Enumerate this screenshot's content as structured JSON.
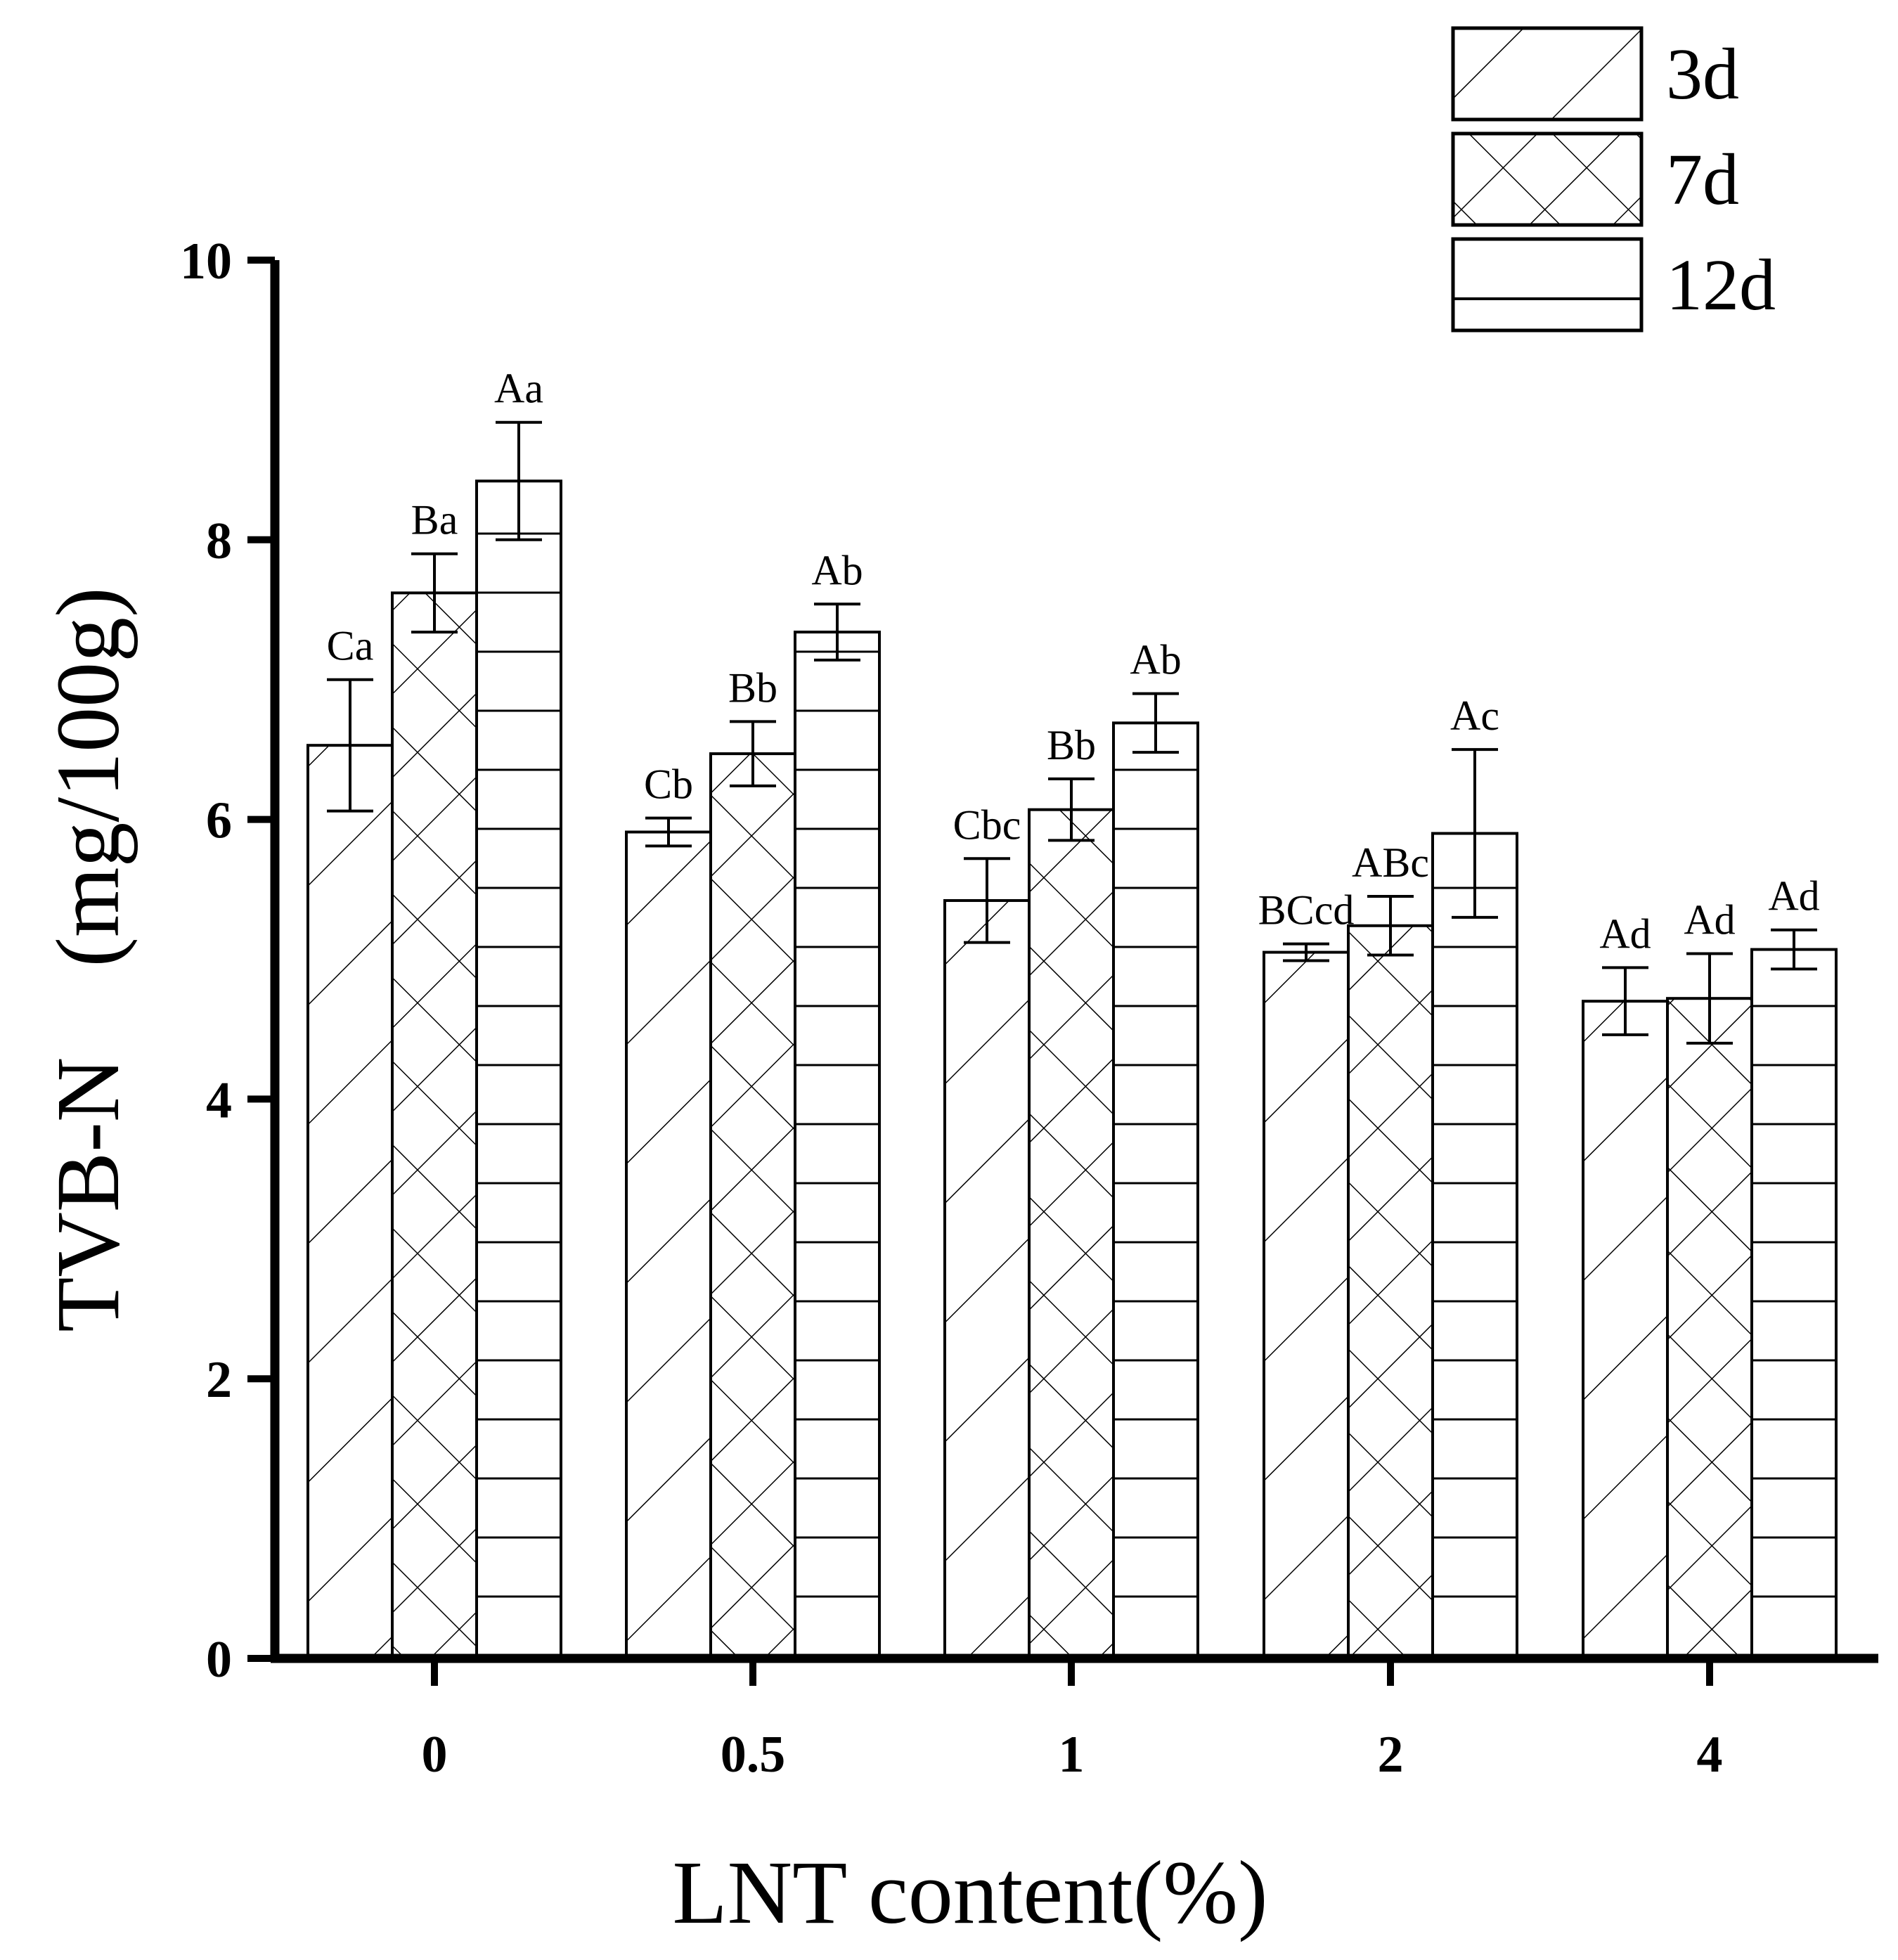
{
  "chart_data": {
    "type": "bar",
    "title": "",
    "xlabel": "LNT content(%)",
    "ylabel": "TVB-N　(mg/100g)",
    "ylim": [
      0,
      10
    ],
    "yticks": [
      "0",
      "2",
      "4",
      "6",
      "8",
      "10"
    ],
    "categories": [
      "0",
      "0.5",
      "1",
      "2",
      "4"
    ],
    "series": [
      {
        "name": "3d",
        "pattern": "diagonal",
        "values": [
          6.53,
          5.91,
          5.42,
          5.05,
          4.7
        ],
        "errors": [
          0.47,
          0.1,
          0.3,
          0.06,
          0.24
        ],
        "labels": [
          "Ca",
          "Cb",
          "Cbc",
          "BCcd",
          "Ad"
        ]
      },
      {
        "name": "7d",
        "pattern": "crosshatch",
        "values": [
          7.62,
          6.47,
          6.07,
          5.24,
          4.72
        ],
        "errors": [
          0.28,
          0.23,
          0.22,
          0.21,
          0.32
        ],
        "labels": [
          "Ba",
          "Bb",
          "Bb",
          "ABc",
          "Ad"
        ]
      },
      {
        "name": "12d",
        "pattern": "horizontal",
        "values": [
          8.42,
          7.34,
          6.69,
          5.9,
          5.07
        ],
        "errors": [
          0.42,
          0.2,
          0.21,
          0.6,
          0.14
        ],
        "labels": [
          "Aa",
          "Ab",
          "Ab",
          "Ac",
          "Ad"
        ]
      }
    ],
    "legend_position": "top-right"
  },
  "colors": {
    "ink": "#000000",
    "bar_fill": "#ffffff"
  }
}
